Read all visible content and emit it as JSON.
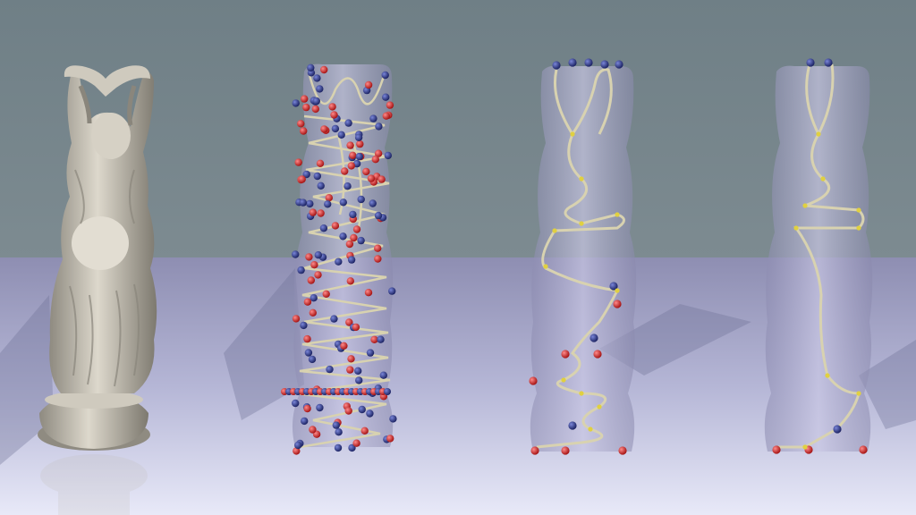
{
  "scene": {
    "description_visible_text": "",
    "colors": {
      "wall": "#77888f",
      "floor_top": "#8f8fb3",
      "floor_bottom": "#e6e7f7",
      "statue_solid": "#bdb8ad",
      "statue_ghost": "#a9a6c9",
      "skeleton_line": "#d8d2b0",
      "joint_yellow": "#e0d040",
      "endpoint_red": "#c01818",
      "endpoint_blue": "#1f2a7a"
    },
    "panels": [
      {
        "id": "solid-statue"
      },
      {
        "id": "dense-skeleton"
      },
      {
        "id": "medium-skeleton"
      },
      {
        "id": "sparse-skeleton"
      }
    ]
  }
}
